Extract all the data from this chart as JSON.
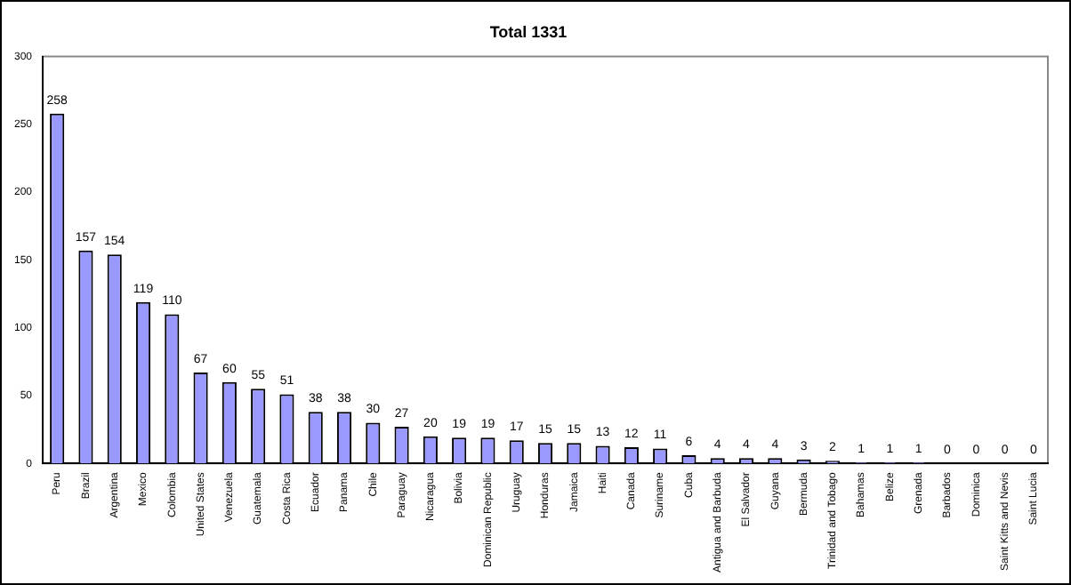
{
  "chart_data": {
    "type": "bar",
    "title": "Total 1331",
    "categories": [
      "Peru",
      "Brazil",
      "Argentina",
      "Mexico",
      "Colombia",
      "United States",
      "Venezuela",
      "Guatemala",
      "Costa Rica",
      "Ecuador",
      "Panama",
      "Chile",
      "Paraguay",
      "Nicaragua",
      "Bolivia",
      "Dominican Republic",
      "Uruguay",
      "Honduras",
      "Jamaica",
      "Haiti",
      "Canada",
      "Suriname",
      "Cuba",
      "Antigua and Barbuda",
      "El Salvador",
      "Guyana",
      "Bermuda",
      "Trinidad and Tobago",
      "Bahamas",
      "Belize",
      "Grenada",
      "Barbados",
      "Dominica",
      "Saint Kitts and Nevis",
      "Saint Lucia"
    ],
    "values": [
      258,
      157,
      154,
      119,
      110,
      67,
      60,
      55,
      51,
      38,
      38,
      30,
      27,
      20,
      19,
      19,
      17,
      15,
      15,
      13,
      12,
      11,
      6,
      4,
      4,
      4,
      3,
      2,
      1,
      1,
      1,
      0,
      0,
      0,
      0
    ],
    "color": "#9999ff",
    "ylim": [
      0,
      300
    ],
    "yticks": [
      0,
      50,
      100,
      150,
      200,
      250,
      300
    ],
    "grid": false,
    "legend": false,
    "data_labels": true
  }
}
